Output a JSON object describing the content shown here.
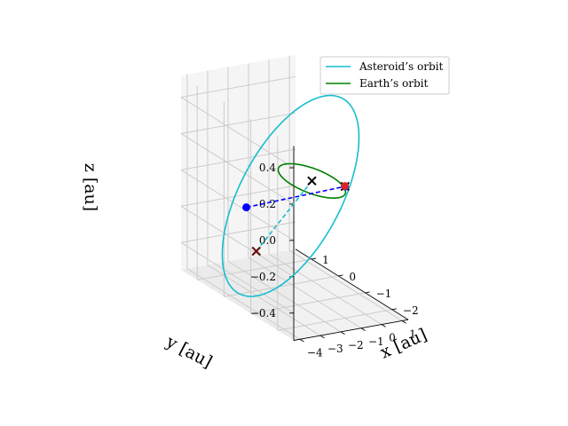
{
  "chart_data": {
    "type": "line3d",
    "projection": "3d",
    "xlabel": "x [au]",
    "ylabel": "y [au]",
    "zlabel": "z [au]",
    "x_ticks": [
      "−4",
      "−3",
      "−2",
      "−1",
      "0",
      "1"
    ],
    "y_ticks": [
      "1",
      "0",
      "−1",
      "−2"
    ],
    "z_ticks": [
      "0.4",
      "0.2",
      "0.0",
      "−0.2",
      "−0.4"
    ],
    "xlim": [
      -4.3,
      1.3
    ],
    "ylim": [
      -2.6,
      1.6
    ],
    "zlim": [
      -0.55,
      0.52
    ],
    "grid": true,
    "legend_location": "upper right",
    "series": [
      {
        "name": "Asteroid’s orbit",
        "color": "#17becf",
        "style": "solid",
        "kind": "orbit",
        "center": [
          -1.5,
          -0.35,
          -0.02
        ],
        "semi_axes": [
          2.6,
          1.6,
          0.48
        ]
      },
      {
        "name": "Earth’s orbit",
        "color": "#008000",
        "style": "solid",
        "kind": "orbit",
        "center": [
          0,
          0,
          0
        ],
        "semi_axes": [
          1.0,
          1.0,
          0.0
        ]
      }
    ],
    "points": [
      {
        "label": "Sun",
        "marker": "x",
        "color": "#000000",
        "x": 0,
        "y": 0,
        "z": 0
      },
      {
        "label": "Earth",
        "marker": "x",
        "color": "#000000",
        "x": 0.7,
        "y": -0.7,
        "z": 0.02
      },
      {
        "label": "Earth body",
        "marker": "o",
        "color": "#0000ff",
        "x": 0.7,
        "y": -0.7,
        "z": 0.02
      },
      {
        "label": "Earth body overlay",
        "marker": "o",
        "color": "#d62728",
        "x": 0.72,
        "y": -0.68,
        "z": 0.02
      },
      {
        "label": "Asteroid",
        "marker": "o",
        "color": "#0000ff",
        "x": -2.55,
        "y": 0.5,
        "z": -0.14
      },
      {
        "label": "Asteroid cross",
        "marker": "x",
        "color": "#000000",
        "x": -2.85,
        "y": -0.1,
        "z": -0.32
      },
      {
        "label": "Asteroid cross overlay",
        "marker": "x",
        "color": "#8b0000",
        "x": -2.85,
        "y": -0.1,
        "z": -0.32
      }
    ],
    "connectors": [
      {
        "from": "Asteroid",
        "to": "Earth",
        "color": "#0000ff",
        "style": "dashed"
      },
      {
        "from": "Asteroid cross",
        "to": "Sun",
        "color": "#17becf",
        "style": "dashed"
      }
    ]
  }
}
